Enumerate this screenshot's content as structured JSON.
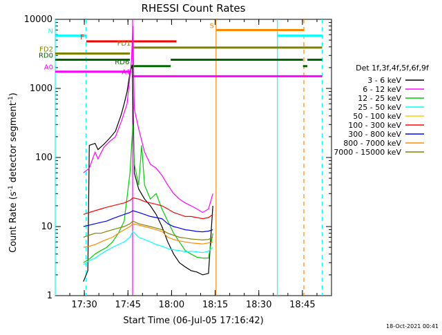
{
  "chart_data": {
    "type": "line",
    "title": "RHESSI Count Rates",
    "xlabel": "Start Time (06-Jul-05 17:16:42)",
    "ylabel_main": "Count Rate (s",
    "ylabel_sup1": "-1",
    "ylabel_mid": " detector segment",
    "ylabel_sup2": "-1",
    "ylabel_end": ")",
    "footer_date": "18-Oct-2021 00:41",
    "x_axis_minutes_from_start": [
      3.3,
      73.3
    ],
    "xtick_minutes": [
      13.3,
      28.3,
      43.3,
      58.3,
      73.3,
      88.3
    ],
    "xtick_labels": [
      "17:30",
      "17:45",
      "18:00",
      "18:15",
      "18:30",
      "18:45"
    ],
    "y_scale": "log",
    "ylim": [
      1,
      10000
    ],
    "ytick_values": [
      1,
      10,
      100,
      1000,
      10000
    ],
    "ytick_labels": [
      "1",
      "10",
      "100",
      "1000",
      "10000"
    ],
    "legend_title": "Det 1f,3f,4f,5f,6f,9f",
    "legend_placement": "right",
    "series": [
      {
        "name": "3 - 6 keV",
        "color": "#000000",
        "points": [
          [
            13.0,
            1.6
          ],
          [
            14.5,
            2.3
          ],
          [
            15.0,
            150
          ],
          [
            17.0,
            160
          ],
          [
            18.0,
            130
          ],
          [
            20.0,
            155
          ],
          [
            22.0,
            190
          ],
          [
            24.0,
            240
          ],
          [
            26.0,
            420
          ],
          [
            27.0,
            600
          ],
          [
            28.0,
            900
          ],
          [
            29.0,
            1700
          ],
          [
            29.8,
            2200
          ],
          [
            30.5,
            60
          ],
          [
            32.0,
            35
          ],
          [
            34.0,
            25
          ],
          [
            36.0,
            20
          ],
          [
            38.0,
            15
          ],
          [
            40.0,
            10
          ],
          [
            42.0,
            6
          ],
          [
            44.0,
            4
          ],
          [
            46.0,
            3
          ],
          [
            48.0,
            2.6
          ],
          [
            50.0,
            2.3
          ],
          [
            52.0,
            2.2
          ],
          [
            54.0,
            2.0
          ],
          [
            56.0,
            2.1
          ],
          [
            57.5,
            20
          ]
        ]
      },
      {
        "name": "6 - 12 keV",
        "color": "#ff00ff",
        "points": [
          [
            13.0,
            60
          ],
          [
            15.0,
            70
          ],
          [
            17.0,
            120
          ],
          [
            18.0,
            95
          ],
          [
            20.0,
            140
          ],
          [
            22.0,
            170
          ],
          [
            24.0,
            200
          ],
          [
            26.0,
            330
          ],
          [
            28.0,
            600
          ],
          [
            29.5,
            2500
          ],
          [
            30.0,
            8000
          ],
          [
            30.5,
            500
          ],
          [
            32.0,
            260
          ],
          [
            34.0,
            120
          ],
          [
            36.0,
            80
          ],
          [
            38.0,
            70
          ],
          [
            40.0,
            55
          ],
          [
            42.0,
            40
          ],
          [
            44.0,
            30
          ],
          [
            46.0,
            25
          ],
          [
            48.0,
            22
          ],
          [
            50.0,
            20
          ],
          [
            52.0,
            18
          ],
          [
            54.0,
            16
          ],
          [
            56.0,
            18
          ],
          [
            57.5,
            30
          ]
        ]
      },
      {
        "name": "12 - 25 keV",
        "color": "#00cc00",
        "points": [
          [
            13.0,
            3.0
          ],
          [
            15.0,
            3.4
          ],
          [
            17.0,
            4
          ],
          [
            19.0,
            4.5
          ],
          [
            21.0,
            5
          ],
          [
            23.0,
            6
          ],
          [
            25.0,
            8
          ],
          [
            27.0,
            12
          ],
          [
            29.0,
            60
          ],
          [
            30.0,
            300
          ],
          [
            30.5,
            80
          ],
          [
            32.0,
            40
          ],
          [
            33.0,
            150
          ],
          [
            34.0,
            40
          ],
          [
            36.0,
            25
          ],
          [
            38.0,
            30
          ],
          [
            40.0,
            18
          ],
          [
            42.0,
            12
          ],
          [
            44.0,
            8
          ],
          [
            46.0,
            6
          ],
          [
            48.0,
            4.5
          ],
          [
            50.0,
            4
          ],
          [
            52.0,
            3.6
          ],
          [
            54.0,
            3.5
          ],
          [
            56.0,
            3.5
          ],
          [
            57.5,
            8
          ]
        ]
      },
      {
        "name": "25 - 50 keV",
        "color": "#00ffff",
        "points": [
          [
            13.0,
            2.8
          ],
          [
            15.0,
            3.2
          ],
          [
            17.0,
            3.5
          ],
          [
            19.0,
            4
          ],
          [
            21.0,
            4.5
          ],
          [
            23.0,
            5
          ],
          [
            25.0,
            5.5
          ],
          [
            27.0,
            6
          ],
          [
            29.0,
            7
          ],
          [
            30.0,
            8.5
          ],
          [
            32.0,
            7
          ],
          [
            34.0,
            6.5
          ],
          [
            36.0,
            6
          ],
          [
            38.0,
            5.5
          ],
          [
            40.0,
            5.2
          ],
          [
            42.0,
            4.8
          ],
          [
            44.0,
            4.6
          ],
          [
            46.0,
            4.5
          ],
          [
            48.0,
            4.3
          ],
          [
            50.0,
            4.4
          ],
          [
            52.0,
            4.3
          ],
          [
            54.0,
            4.2
          ],
          [
            56.0,
            4.4
          ],
          [
            57.5,
            5
          ]
        ]
      },
      {
        "name": "50 - 100 keV",
        "color": "#ffcc00",
        "points": []
      },
      {
        "name": "100 - 300 keV",
        "color": "#ff0000",
        "points": [
          [
            13.0,
            15
          ],
          [
            15.0,
            16
          ],
          [
            17.0,
            17
          ],
          [
            19.0,
            18
          ],
          [
            21.0,
            19
          ],
          [
            23.0,
            20
          ],
          [
            25.0,
            21
          ],
          [
            27.0,
            22
          ],
          [
            29.0,
            24
          ],
          [
            30.0,
            26
          ],
          [
            32.0,
            25
          ],
          [
            34.0,
            23
          ],
          [
            36.0,
            22
          ],
          [
            38.0,
            21
          ],
          [
            40.0,
            20
          ],
          [
            42.0,
            18
          ],
          [
            44.0,
            16
          ],
          [
            46.0,
            15
          ],
          [
            48.0,
            14
          ],
          [
            50.0,
            14
          ],
          [
            52.0,
            13.5
          ],
          [
            54.0,
            13
          ],
          [
            56.0,
            13.5
          ],
          [
            57.5,
            15
          ]
        ]
      },
      {
        "name": "300 - 800 keV",
        "color": "#0000ff",
        "points": [
          [
            13.0,
            10
          ],
          [
            15.0,
            10.5
          ],
          [
            17.0,
            11
          ],
          [
            19.0,
            11.5
          ],
          [
            21.0,
            12
          ],
          [
            23.0,
            13
          ],
          [
            25.0,
            14
          ],
          [
            27.0,
            15
          ],
          [
            29.0,
            16
          ],
          [
            30.0,
            17
          ],
          [
            32.0,
            16
          ],
          [
            34.0,
            15
          ],
          [
            36.0,
            14
          ],
          [
            38.0,
            13.5
          ],
          [
            40.0,
            13
          ],
          [
            42.0,
            11
          ],
          [
            44.0,
            10
          ],
          [
            46.0,
            9.5
          ],
          [
            48.0,
            9
          ],
          [
            50.0,
            8.8
          ],
          [
            52.0,
            8.5
          ],
          [
            54.0,
            8.4
          ],
          [
            56.0,
            8.6
          ],
          [
            57.5,
            9
          ]
        ]
      },
      {
        "name": "800 - 7000 keV",
        "color": "#ff8800",
        "points": [
          [
            13.0,
            5
          ],
          [
            15.0,
            5.2
          ],
          [
            17.0,
            5.5
          ],
          [
            19.0,
            6
          ],
          [
            21.0,
            6.5
          ],
          [
            23.0,
            7
          ],
          [
            25.0,
            8
          ],
          [
            27.0,
            9
          ],
          [
            29.0,
            10
          ],
          [
            30.0,
            11
          ],
          [
            32.0,
            10.5
          ],
          [
            34.0,
            10
          ],
          [
            36.0,
            9.5
          ],
          [
            38.0,
            9
          ],
          [
            40.0,
            8.5
          ],
          [
            42.0,
            7
          ],
          [
            44.0,
            6.5
          ],
          [
            46.0,
            6.2
          ],
          [
            48.0,
            6
          ],
          [
            50.0,
            5.8
          ],
          [
            52.0,
            5.7
          ],
          [
            54.0,
            5.6
          ],
          [
            56.0,
            5.8
          ],
          [
            57.5,
            6
          ]
        ]
      },
      {
        "name": "7000 - 15000 keV",
        "color": "#808000",
        "points": [
          [
            13.0,
            7
          ],
          [
            15.0,
            7.5
          ],
          [
            17.0,
            8
          ],
          [
            19.0,
            8
          ],
          [
            21.0,
            8.5
          ],
          [
            23.0,
            9
          ],
          [
            25.0,
            9.5
          ],
          [
            27.0,
            10
          ],
          [
            29.0,
            11
          ],
          [
            30.0,
            12
          ],
          [
            32.0,
            11
          ],
          [
            34.0,
            10.5
          ],
          [
            36.0,
            10
          ],
          [
            38.0,
            9.5
          ],
          [
            40.0,
            9
          ],
          [
            42.0,
            8
          ],
          [
            44.0,
            7.5
          ],
          [
            46.0,
            7
          ],
          [
            48.0,
            6.8
          ],
          [
            50.0,
            6.6
          ],
          [
            52.0,
            6.5
          ],
          [
            54.0,
            6.4
          ],
          [
            56.0,
            6.5
          ],
          [
            57.5,
            7
          ]
        ]
      }
    ],
    "vertical_markers": [
      {
        "x": 13.9,
        "color": "#00ffff",
        "style": "dashed"
      },
      {
        "x": 29.9,
        "color": "#ff00ff",
        "style": "solid"
      },
      {
        "x": 58.6,
        "color": "#ff8800",
        "style": "solid"
      },
      {
        "x": 3.3,
        "color": "#00ffff",
        "style": "solid"
      },
      {
        "x": 79.7,
        "color": "#00ffff",
        "style": "solid"
      },
      {
        "x": 88.8,
        "color": "#ff8800",
        "style": "dashed"
      },
      {
        "x": 95.1,
        "color": "#00ffff",
        "style": "dashed"
      }
    ],
    "flag_bars": [
      {
        "label": "N",
        "color": "#00ffff",
        "y": 5800,
        "segments": [
          [
            3.3,
            13.9
          ],
          [
            79.7,
            95.1
          ]
        ]
      },
      {
        "label": "S",
        "color": "#ff8800",
        "y": 7000,
        "segments": [
          [
            58.6,
            88.8
          ]
        ]
      },
      {
        "label": "F",
        "color": "#ff0000",
        "y": 4800,
        "segments": [
          [
            14.0,
            45.0
          ]
        ]
      },
      {
        "label": "FD1",
        "color": "#808000",
        "y": 3900,
        "segments": [
          [
            30.0,
            95.1
          ]
        ]
      },
      {
        "label": "FD2",
        "color": "#808000",
        "y": 3200,
        "segments": [
          [
            3.3,
            29.0
          ]
        ]
      },
      {
        "label": "RD0",
        "color": "#006600",
        "y": 2600,
        "segments": [
          [
            3.3,
            29.0
          ],
          [
            43.0,
            88.5
          ],
          [
            90.0,
            95.1
          ]
        ]
      },
      {
        "label": "RD6",
        "color": "#006600",
        "y": 2100,
        "segments": [
          [
            29.5,
            43.0
          ],
          [
            88.5,
            90.0
          ]
        ]
      },
      {
        "label": "A0",
        "color": "#ff00ff",
        "y": 1750,
        "segments": [
          [
            3.3,
            29.5
          ]
        ]
      },
      {
        "label": "A1",
        "color": "#ff00ff",
        "y": 1500,
        "segments": [
          [
            30.0,
            95.1
          ]
        ]
      }
    ],
    "grid": false
  }
}
